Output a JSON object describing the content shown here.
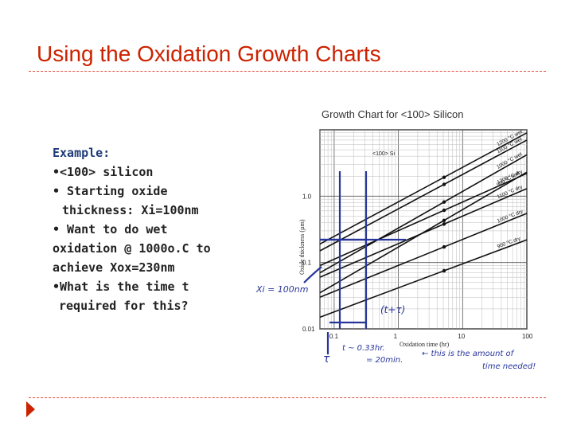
{
  "slide": {
    "title": "Using the Oxidation Growth Charts"
  },
  "example": {
    "heading": "Example:",
    "lines": [
      "•<100> silicon",
      "• Starting oxide",
      "   thickness: Xi=100nm",
      "• Want to do wet",
      "oxidation @ 1000o.C to",
      "achieve Xox=230nm",
      "•What is the time t",
      "  required for this?"
    ]
  },
  "chart": {
    "caption": "Growth Chart for <100> Silicon",
    "orientation": "<100> Si",
    "xlabel": "Oxidation time (hr)",
    "ylabel": "Oxide thickness (µm)",
    "x_ticks": [
      "0.1",
      "1",
      "10",
      "100"
    ],
    "y_ticks": [
      "1.0",
      "0.1",
      "0.01"
    ],
    "handwritten": {
      "xi": "Xi = 100nm",
      "t_plus_tau": "(t+τ)",
      "t_note": "t ~ 0.33hr.",
      "t_min": "= 20min.",
      "tau": "τ",
      "note1": "← this is the amount of",
      "note2": "time needed!"
    },
    "colors": {
      "annotation": "#27359a",
      "accent": "#cc2200"
    }
  },
  "chart_data": {
    "type": "line",
    "title": "Growth Chart for <100> Silicon",
    "xlabel": "Oxidation time (hr)",
    "ylabel": "Oxide thickness (µm)",
    "x_scale": "log",
    "y_scale": "log",
    "xlim": [
      0.06,
      100
    ],
    "ylim": [
      0.01,
      10
    ],
    "grid": true,
    "series": [
      {
        "name": "1200 °C wet",
        "x": [
          0.06,
          100
        ],
        "y": [
          0.19,
          9.0
        ]
      },
      {
        "name": "1100 °C wet",
        "x": [
          0.06,
          100
        ],
        "y": [
          0.15,
          7.0
        ]
      },
      {
        "name": "1000 °C wet",
        "x": [
          0.06,
          100
        ],
        "y": [
          0.07,
          4.2
        ]
      },
      {
        "name": "900 °C wet",
        "x": [
          0.06,
          100
        ],
        "y": [
          0.035,
          2.3
        ]
      },
      {
        "name": "1200 °C dry",
        "x": [
          0.06,
          100
        ],
        "y": [
          0.09,
          2.2
        ]
      },
      {
        "name": "1100 °C dry",
        "x": [
          0.06,
          100
        ],
        "y": [
          0.06,
          1.3
        ]
      },
      {
        "name": "1000 °C dry",
        "x": [
          0.06,
          100
        ],
        "y": [
          0.03,
          0.55
        ]
      },
      {
        "name": "900 °C dry",
        "x": [
          0.06,
          100
        ],
        "y": [
          0.015,
          0.22
        ]
      }
    ],
    "annotations": [
      {
        "label": "Xi = 100nm",
        "x": 0.09,
        "y": 0.1
      },
      {
        "label": "(t+τ)",
        "x": 0.42,
        "y": 0.23
      }
    ]
  }
}
